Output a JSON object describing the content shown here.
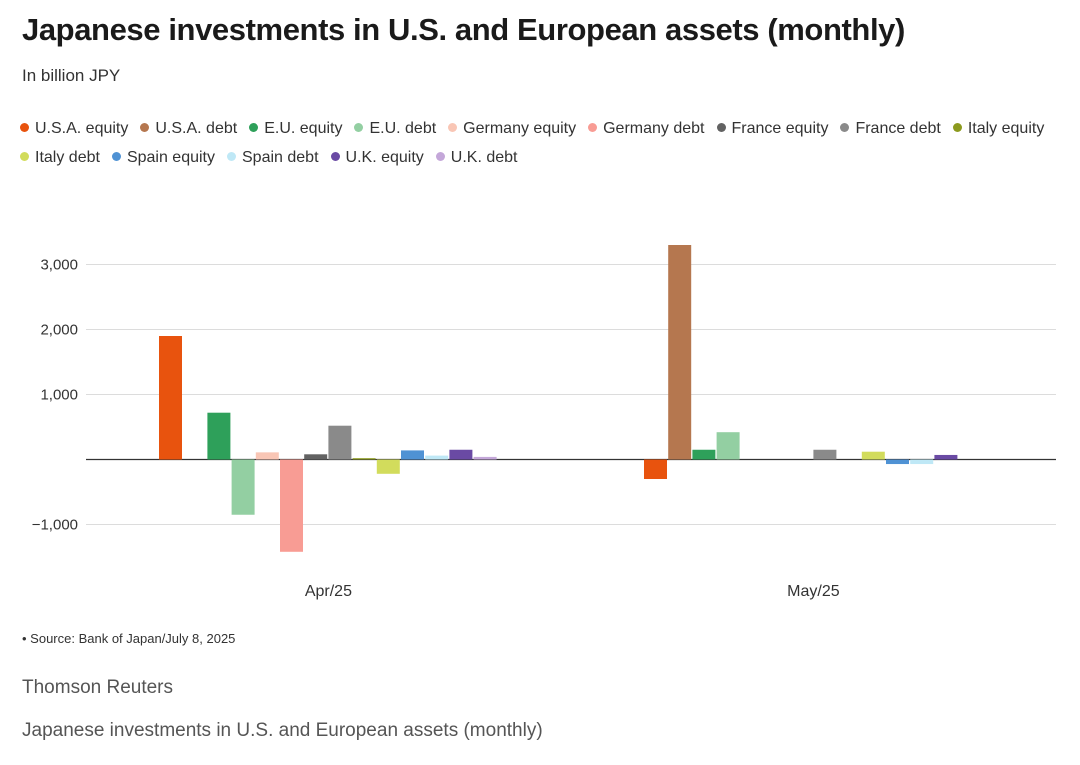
{
  "header": {
    "title": "Japanese investments in U.S. and European assets (monthly)",
    "subtitle": "In billion JPY"
  },
  "footer": {
    "source": "• Source: Bank of Japan/July 8, 2025",
    "credit": "Thomson Reuters",
    "caption": "Japanese investments in U.S. and European assets (monthly)"
  },
  "chart_data": {
    "type": "bar",
    "title": "Japanese investments in U.S. and European assets (monthly)",
    "subtitle": "In billion JPY",
    "categories": [
      "Apr/25",
      "May/25"
    ],
    "ylim": [
      -1500,
      3400
    ],
    "yticks": [
      -1000,
      0,
      1000,
      2000,
      3000
    ],
    "ytick_labels": [
      "−1,000",
      "",
      "1,000",
      "2,000",
      "3,000"
    ],
    "grid": true,
    "legend_position": "top",
    "series": [
      {
        "name": "U.S.A. equity",
        "color": "#e8530e",
        "values": [
          1900,
          -300
        ]
      },
      {
        "name": "U.S.A. debt",
        "color": "#b5774f",
        "values": [
          0,
          3300
        ]
      },
      {
        "name": "E.U. equity",
        "color": "#2ea05a",
        "values": [
          720,
          150
        ]
      },
      {
        "name": "E.U. debt",
        "color": "#93cfa2",
        "values": [
          -850,
          420
        ]
      },
      {
        "name": "Germany equity",
        "color": "#f9c6b5",
        "values": [
          110,
          0
        ]
      },
      {
        "name": "Germany debt",
        "color": "#f89c94",
        "values": [
          -1420,
          0
        ]
      },
      {
        "name": "France equity",
        "color": "#626262",
        "values": [
          80,
          0
        ]
      },
      {
        "name": "France debt",
        "color": "#8a8a8a",
        "values": [
          520,
          150
        ]
      },
      {
        "name": "Italy equity",
        "color": "#8c9a1e",
        "values": [
          20,
          0
        ]
      },
      {
        "name": "Italy debt",
        "color": "#d2dc5c",
        "values": [
          -220,
          120
        ]
      },
      {
        "name": "Spain equity",
        "color": "#4f92d4",
        "values": [
          140,
          -70
        ]
      },
      {
        "name": "Spain debt",
        "color": "#bfe8f6",
        "values": [
          60,
          -70
        ]
      },
      {
        "name": "U.K. equity",
        "color": "#6a4aa4",
        "values": [
          150,
          70
        ]
      },
      {
        "name": "U.K. debt",
        "color": "#c4a7d9",
        "values": [
          40,
          0
        ]
      }
    ]
  }
}
